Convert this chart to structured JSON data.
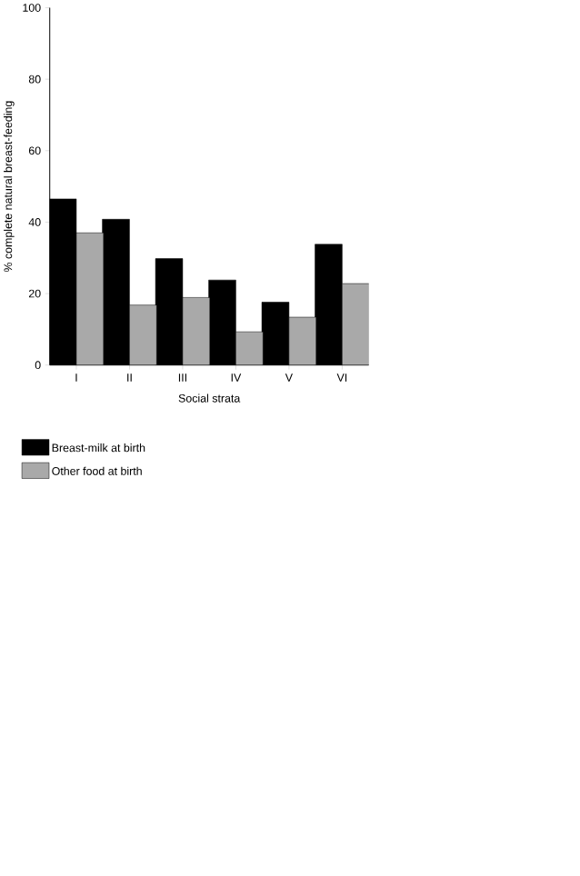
{
  "chart_data": {
    "type": "bar",
    "xlabel": "Social strata",
    "ylabel": "% complete natural breast-feeding",
    "categories": [
      "I",
      "II",
      "III",
      "IV",
      "V",
      "VI"
    ],
    "series": [
      {
        "name": "Breast-milk at birth",
        "color": "#000000",
        "values": [
          46.5,
          40.8,
          29.8,
          23.8,
          17.6,
          33.8
        ]
      },
      {
        "name": "Other food at birth",
        "color": "#a9a9a9",
        "values": [
          37,
          16.8,
          18.9,
          9.3,
          13.4,
          22.8
        ]
      }
    ],
    "ylim": [
      0,
      100
    ],
    "yticks": [
      0,
      20,
      40,
      60,
      80,
      100
    ],
    "legend": "bottom"
  }
}
